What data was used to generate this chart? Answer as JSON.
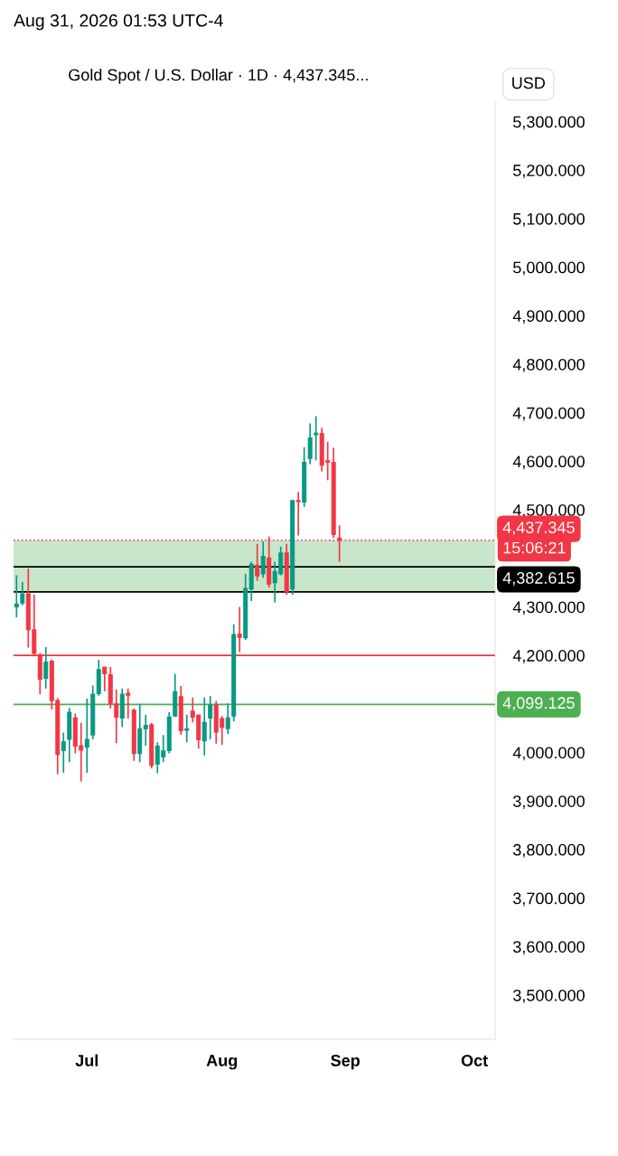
{
  "chart_data": {
    "type": "candlestick",
    "title": "Gold Spot / U.S. Dollar · 1D · 4,437.345...",
    "subtitle": "Aug 31, 2026 01:53 UTC-4",
    "annotations": [
      "USD",
      "15:06:21"
    ],
    "categories": [
      null,
      null,
      null,
      null,
      null,
      null,
      null,
      null,
      null,
      null,
      null,
      null,
      "Jul",
      null,
      null,
      null,
      null,
      null,
      null,
      null,
      null,
      null,
      null,
      null,
      null,
      null,
      null,
      null,
      null,
      null,
      null,
      null,
      null,
      null,
      null,
      "Aug",
      null,
      null,
      null,
      null,
      null,
      null,
      null,
      null,
      null,
      null,
      null,
      null,
      null,
      null,
      null,
      null,
      null,
      null,
      null,
      null,
      "Sep",
      null,
      null,
      null,
      null,
      null,
      null,
      null,
      null,
      null,
      null,
      null,
      null,
      null,
      null,
      null,
      null,
      null,
      null,
      null,
      null,
      null,
      "Oct",
      null,
      null,
      null
    ],
    "ohlc": [
      [
        4300,
        4365,
        4278,
        4306
      ],
      [
        4308,
        4351,
        4303,
        4327
      ],
      [
        4327,
        4379,
        4216,
        4253
      ],
      [
        4253,
        4325,
        4198,
        4204
      ],
      [
        4201,
        4205,
        4120,
        4151
      ],
      [
        4153,
        4217,
        4132,
        4186
      ],
      [
        4188,
        4191,
        4089,
        4107
      ],
      [
        4107,
        4112,
        3955,
        3996
      ],
      [
        4004,
        4041,
        3958,
        4022
      ],
      [
        4027,
        4092,
        3980,
        4083
      ],
      [
        4071,
        4080,
        3998,
        4013
      ],
      [
        4014,
        4061,
        3940,
        4005
      ],
      [
        4011,
        4111,
        3958,
        4027
      ],
      [
        4036,
        4138,
        4027,
        4120
      ],
      [
        4121,
        4191,
        4117,
        4171
      ],
      [
        4176,
        4176,
        4126,
        4162
      ],
      [
        4160,
        4176,
        4091,
        4101
      ],
      [
        4100,
        4130,
        4019,
        4073
      ],
      [
        4071,
        4132,
        4052,
        4120
      ],
      [
        4122,
        4132,
        4070,
        4118
      ],
      [
        4087,
        4091,
        3983,
        3998
      ],
      [
        3998,
        4100,
        3980,
        4049
      ],
      [
        4049,
        4078,
        4014,
        4056
      ],
      [
        4057,
        4061,
        3967,
        3973
      ],
      [
        3976,
        4021,
        3957,
        4013
      ],
      [
        3991,
        4036,
        3980,
        4003
      ],
      [
        4004,
        4083,
        3998,
        4073
      ],
      [
        4075,
        4162,
        4073,
        4125
      ],
      [
        4115,
        4137,
        4037,
        4045
      ],
      [
        4046,
        4078,
        4021,
        4049
      ],
      [
        4085,
        4113,
        4062,
        4073
      ],
      [
        4077,
        4077,
        4008,
        4026
      ],
      [
        4024,
        4113,
        3994,
        4062
      ],
      [
        4071,
        4116,
        4027,
        4098
      ],
      [
        4098,
        4106,
        4018,
        4042
      ],
      [
        4070,
        4075,
        4016,
        4052
      ],
      [
        4049,
        4101,
        4038,
        4071
      ],
      [
        4075,
        4264,
        4064,
        4243
      ],
      [
        4244,
        4300,
        4207,
        4237
      ],
      [
        4236,
        4368,
        4232,
        4338
      ],
      [
        4337,
        4393,
        4312,
        4388
      ],
      [
        4386,
        4430,
        4354,
        4364
      ],
      [
        4368,
        4435,
        4360,
        4404
      ],
      [
        4401,
        4445,
        4340,
        4347
      ],
      [
        4350,
        4393,
        4309,
        4373
      ],
      [
        4368,
        4424,
        4365,
        4411
      ],
      [
        4411,
        4430,
        4325,
        4331
      ],
      [
        4337,
        4519,
        4325,
        4519
      ],
      [
        4519,
        4537,
        4447,
        4517
      ],
      [
        4516,
        4629,
        4506,
        4598
      ],
      [
        4606,
        4678,
        4594,
        4648
      ],
      [
        4655,
        4693,
        4602,
        4658
      ],
      [
        4657,
        4669,
        4579,
        4592
      ],
      [
        4601,
        4640,
        4561,
        4598
      ],
      [
        4598,
        4628,
        4442,
        4449
      ],
      [
        4442,
        4468,
        4393,
        4437.345
      ],
      null,
      null,
      null,
      null,
      null,
      null,
      null,
      null,
      null,
      null,
      null,
      null,
      null,
      null,
      null,
      null,
      null,
      null,
      null,
      null,
      null,
      null,
      null,
      null,
      null,
      null
    ],
    "colors": [
      "#089981",
      "#089981",
      "#f23645",
      "#f23645",
      "#f23645",
      "#089981",
      "#f23645",
      "#f23645",
      "#089981",
      "#089981",
      "#f23645",
      "#f23645",
      "#089981",
      "#089981",
      "#089981",
      "#f23645",
      "#f23645",
      "#f23645",
      "#089981",
      "#f23645",
      "#f23645",
      "#089981",
      "#089981",
      "#f23645",
      "#089981",
      "#089981",
      "#089981",
      "#089981",
      "#f23645",
      "#089981",
      "#f23645",
      "#f23645",
      "#089981",
      "#089981",
      "#f23645",
      "#f23645",
      "#089981",
      "#089981",
      "#f23645",
      "#089981",
      "#089981",
      "#f23645",
      "#089981",
      "#f23645",
      "#089981",
      "#089981",
      "#f23645",
      "#089981",
      "#f23645",
      "#089981",
      "#089981",
      "#089981",
      "#f23645",
      "#f23645",
      "#f23645",
      "#f23645",
      null,
      null,
      null,
      null,
      null,
      null,
      null,
      null,
      null,
      null,
      null,
      null,
      null,
      null,
      null,
      null,
      null,
      null,
      null,
      null,
      null,
      null,
      null,
      null,
      null,
      null
    ],
    "ylim": [
      3409,
      5341
    ],
    "yticks": [
      {
        "value": 3500,
        "label": "3,500.000"
      },
      {
        "value": 3600,
        "label": "3,600.000"
      },
      {
        "value": 3700,
        "label": "3,700.000"
      },
      {
        "value": 3800,
        "label": "3,800.000"
      },
      {
        "value": 3900,
        "label": "3,900.000"
      },
      {
        "value": 4000,
        "label": "4,000.000"
      },
      {
        "value": 4200,
        "label": "4,200.000"
      },
      {
        "value": 4300,
        "label": "4,300.000"
      },
      {
        "value": 4500,
        "label": "4,500.000"
      },
      {
        "value": 4600,
        "label": "4,600.000"
      },
      {
        "value": 4700,
        "label": "4,700.000"
      },
      {
        "value": 4800,
        "label": "4,800.000"
      },
      {
        "value": 4900,
        "label": "4,900.000"
      },
      {
        "value": 5000,
        "label": "5,000.000"
      },
      {
        "value": 5100,
        "label": "5,100.000"
      },
      {
        "value": 5200,
        "label": "5,200.000"
      },
      {
        "value": 5300,
        "label": "5,300.000"
      }
    ],
    "ref_lines": [
      {
        "axis": "y",
        "value": 4437.345,
        "label": "4,437.345",
        "color": "#f23645",
        "line_style": "dotted"
      },
      {
        "axis": "y",
        "value": 4382.615,
        "label": "4,382.615",
        "color": "#000000",
        "line_style": "solid"
      },
      {
        "axis": "y",
        "value": 4331,
        "color": "#000000",
        "line_style": "solid"
      },
      {
        "axis": "y",
        "value": 4200,
        "color": "#f23645",
        "line_style": "solid"
      },
      {
        "axis": "y",
        "value": 4099.125,
        "label": "4,099.125",
        "color": "#4caf50",
        "line_style": "solid"
      }
    ],
    "bands": [
      {
        "axis": "y",
        "from": 4331,
        "to": 4437.345,
        "color": "#c8e6c9"
      }
    ],
    "grid": false
  }
}
